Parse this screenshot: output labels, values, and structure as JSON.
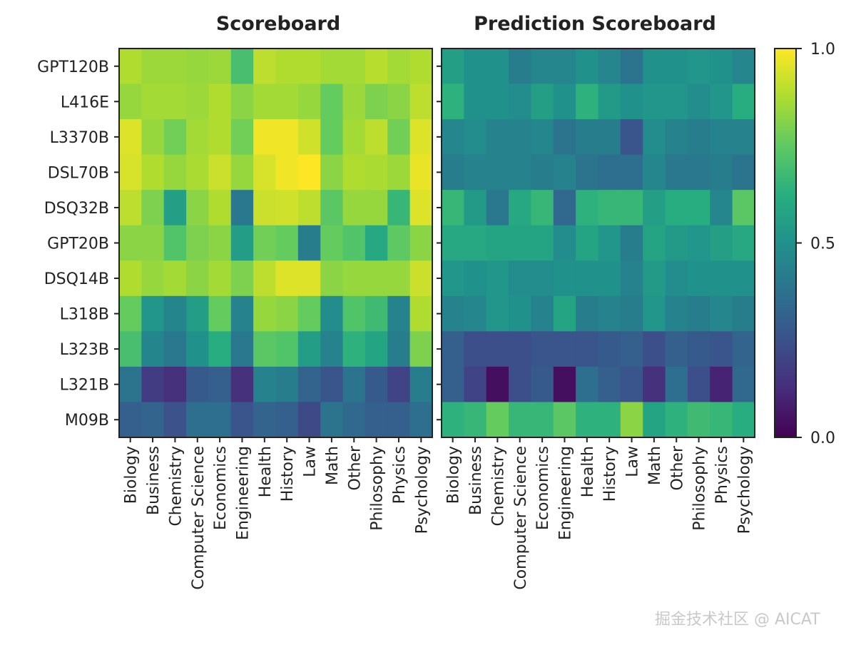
{
  "chart_data": [
    {
      "type": "heatmap",
      "title": "Scoreboard",
      "rows": [
        "GPT120B",
        "L416E",
        "L3370B",
        "DSL70B",
        "DSQ32B",
        "GPT20B",
        "DSQ14B",
        "L318B",
        "L323B",
        "L321B",
        "M09B"
      ],
      "columns": [
        "Biology",
        "Business",
        "Chemistry",
        "Computer Science",
        "Economics",
        "Engineering",
        "Health",
        "History",
        "Law",
        "Math",
        "Other",
        "Philosophy",
        "Physics",
        "Psychology"
      ],
      "values": [
        [
          0.88,
          0.85,
          0.85,
          0.84,
          0.85,
          0.7,
          0.9,
          0.88,
          0.88,
          0.86,
          0.86,
          0.89,
          0.86,
          0.88
        ],
        [
          0.84,
          0.86,
          0.86,
          0.85,
          0.88,
          0.82,
          0.86,
          0.86,
          0.84,
          0.76,
          0.85,
          0.8,
          0.82,
          0.9
        ],
        [
          0.95,
          0.84,
          0.78,
          0.86,
          0.88,
          0.78,
          0.98,
          0.98,
          0.93,
          0.76,
          0.86,
          0.9,
          0.78,
          0.95
        ],
        [
          0.94,
          0.88,
          0.84,
          0.87,
          0.92,
          0.84,
          0.94,
          0.98,
          1.0,
          0.82,
          0.88,
          0.87,
          0.85,
          0.97
        ],
        [
          0.9,
          0.8,
          0.56,
          0.82,
          0.88,
          0.4,
          0.92,
          0.93,
          0.9,
          0.74,
          0.84,
          0.84,
          0.66,
          0.95
        ],
        [
          0.82,
          0.82,
          0.72,
          0.8,
          0.82,
          0.55,
          0.78,
          0.76,
          0.42,
          0.76,
          0.72,
          0.6,
          0.75,
          0.82
        ],
        [
          0.88,
          0.84,
          0.86,
          0.82,
          0.86,
          0.8,
          0.9,
          0.95,
          0.95,
          0.82,
          0.84,
          0.84,
          0.84,
          0.92
        ],
        [
          0.76,
          0.52,
          0.45,
          0.55,
          0.76,
          0.44,
          0.84,
          0.82,
          0.76,
          0.48,
          0.72,
          0.68,
          0.44,
          0.88
        ],
        [
          0.7,
          0.45,
          0.4,
          0.5,
          0.62,
          0.4,
          0.74,
          0.72,
          0.55,
          0.44,
          0.64,
          0.58,
          0.42,
          0.8
        ],
        [
          0.38,
          0.18,
          0.14,
          0.28,
          0.3,
          0.14,
          0.44,
          0.42,
          0.32,
          0.26,
          0.38,
          0.28,
          0.2,
          0.42
        ],
        [
          0.3,
          0.32,
          0.25,
          0.36,
          0.36,
          0.26,
          0.32,
          0.3,
          0.22,
          0.38,
          0.34,
          0.3,
          0.3,
          0.36
        ]
      ]
    },
    {
      "type": "heatmap",
      "title": "Prediction Scoreboard",
      "rows": [
        "GPT120B",
        "L416E",
        "L3370B",
        "DSL70B",
        "DSQ32B",
        "GPT20B",
        "DSQ14B",
        "L318B",
        "L323B",
        "L321B",
        "M09B"
      ],
      "columns": [
        "Biology",
        "Business",
        "Chemistry",
        "Computer Science",
        "Economics",
        "Engineering",
        "Health",
        "History",
        "Law",
        "Math",
        "Other",
        "Philosophy",
        "Physics",
        "Psychology"
      ],
      "values": [
        [
          0.56,
          0.5,
          0.5,
          0.42,
          0.46,
          0.46,
          0.5,
          0.46,
          0.38,
          0.5,
          0.5,
          0.52,
          0.5,
          0.46
        ],
        [
          0.64,
          0.5,
          0.5,
          0.48,
          0.56,
          0.5,
          0.64,
          0.54,
          0.5,
          0.52,
          0.52,
          0.48,
          0.52,
          0.62
        ],
        [
          0.46,
          0.48,
          0.44,
          0.44,
          0.46,
          0.38,
          0.42,
          0.42,
          0.26,
          0.48,
          0.44,
          0.42,
          0.44,
          0.44
        ],
        [
          0.42,
          0.44,
          0.44,
          0.44,
          0.42,
          0.44,
          0.38,
          0.36,
          0.36,
          0.46,
          0.4,
          0.4,
          0.42,
          0.38
        ],
        [
          0.66,
          0.54,
          0.4,
          0.6,
          0.66,
          0.34,
          0.64,
          0.66,
          0.66,
          0.56,
          0.62,
          0.62,
          0.46,
          0.74
        ],
        [
          0.6,
          0.6,
          0.58,
          0.58,
          0.58,
          0.48,
          0.58,
          0.52,
          0.42,
          0.58,
          0.54,
          0.52,
          0.56,
          0.6
        ],
        [
          0.52,
          0.5,
          0.52,
          0.48,
          0.48,
          0.5,
          0.5,
          0.5,
          0.44,
          0.54,
          0.48,
          0.5,
          0.5,
          0.5
        ],
        [
          0.44,
          0.46,
          0.52,
          0.5,
          0.44,
          0.58,
          0.42,
          0.44,
          0.42,
          0.52,
          0.44,
          0.42,
          0.46,
          0.42
        ],
        [
          0.3,
          0.24,
          0.24,
          0.24,
          0.26,
          0.26,
          0.26,
          0.28,
          0.3,
          0.24,
          0.3,
          0.28,
          0.26,
          0.32
        ],
        [
          0.3,
          0.2,
          0.04,
          0.24,
          0.28,
          0.04,
          0.36,
          0.3,
          0.26,
          0.14,
          0.36,
          0.24,
          0.1,
          0.34
        ],
        [
          0.64,
          0.66,
          0.76,
          0.66,
          0.66,
          0.74,
          0.64,
          0.64,
          0.82,
          0.58,
          0.64,
          0.68,
          0.66,
          0.62
        ]
      ]
    }
  ],
  "colorbar": {
    "min": 0.0,
    "max": 1.0,
    "ticks": [
      "0.0",
      "0.5",
      "1.0"
    ],
    "colormap": "viridis"
  },
  "watermark": "掘金技术社区 @ AICAT"
}
